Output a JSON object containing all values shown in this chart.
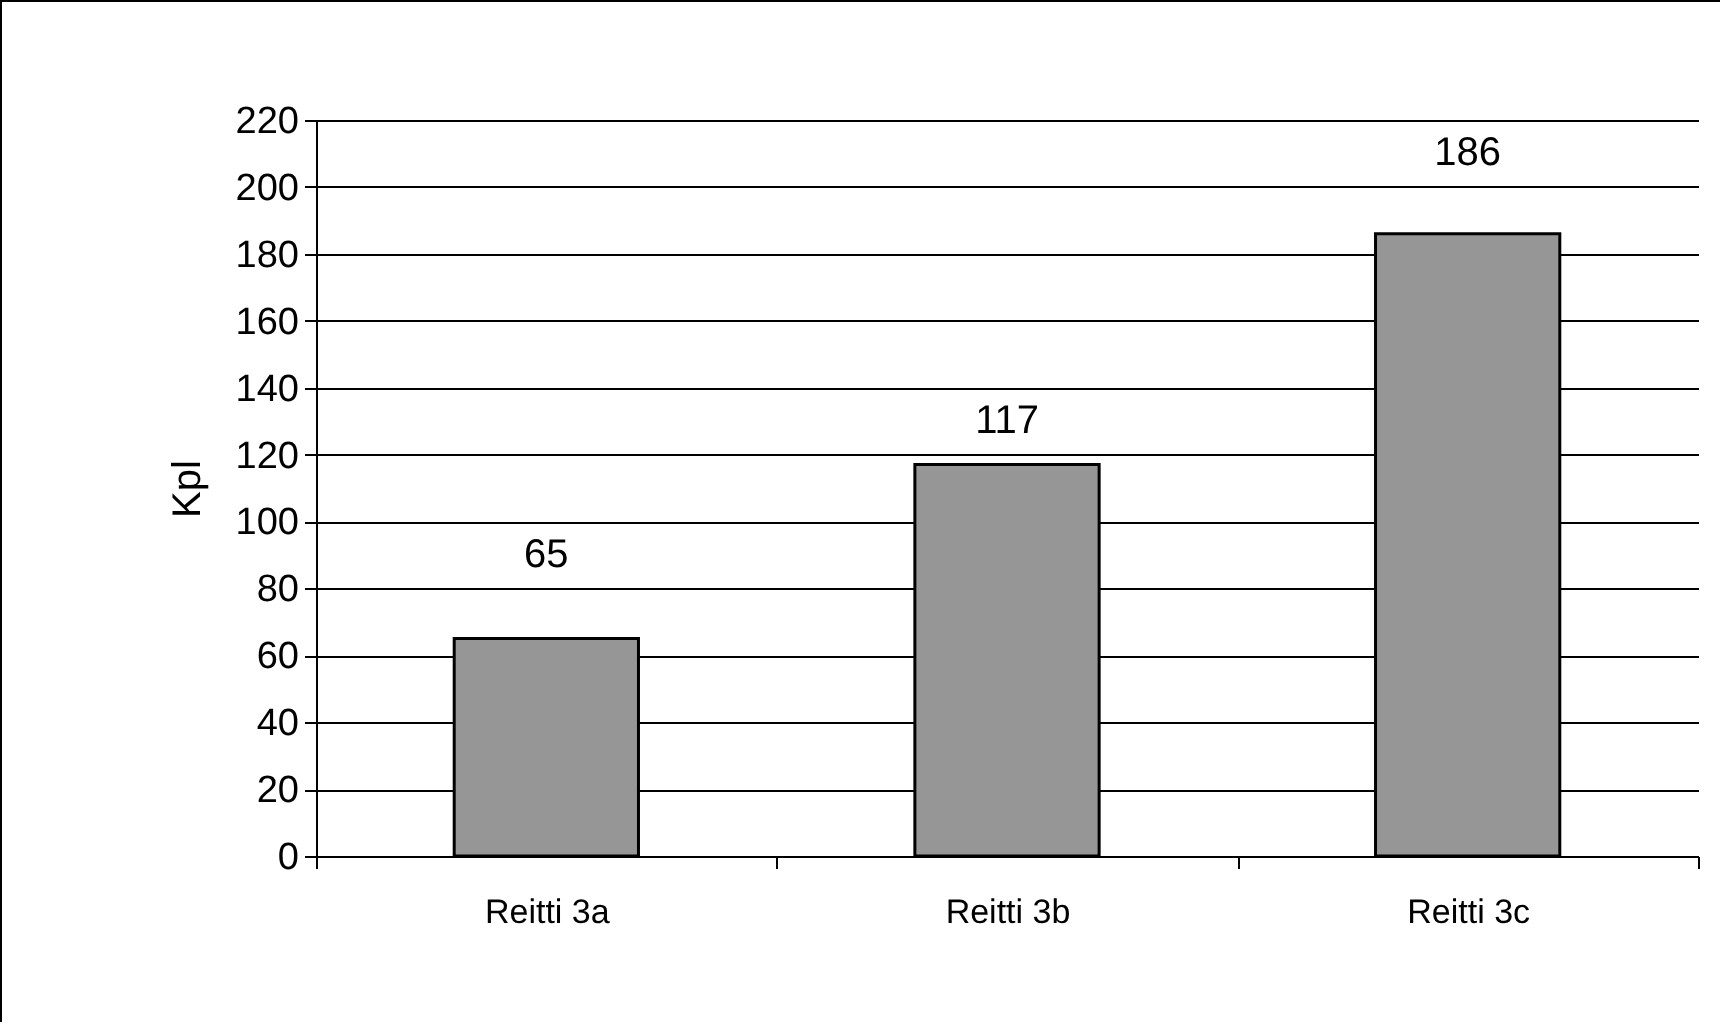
{
  "chart_data": {
    "type": "bar",
    "ylabel": "Kpl",
    "categories": [
      "Reitti 3a",
      "Reitti 3b",
      "Reitti 3c"
    ],
    "values": [
      65,
      117,
      186
    ],
    "color": "#969696",
    "ylim": [
      0,
      220
    ],
    "yticks": [
      0,
      20,
      40,
      60,
      80,
      100,
      120,
      140,
      160,
      180,
      200,
      220
    ],
    "grid": "y",
    "data_labels": true
  }
}
